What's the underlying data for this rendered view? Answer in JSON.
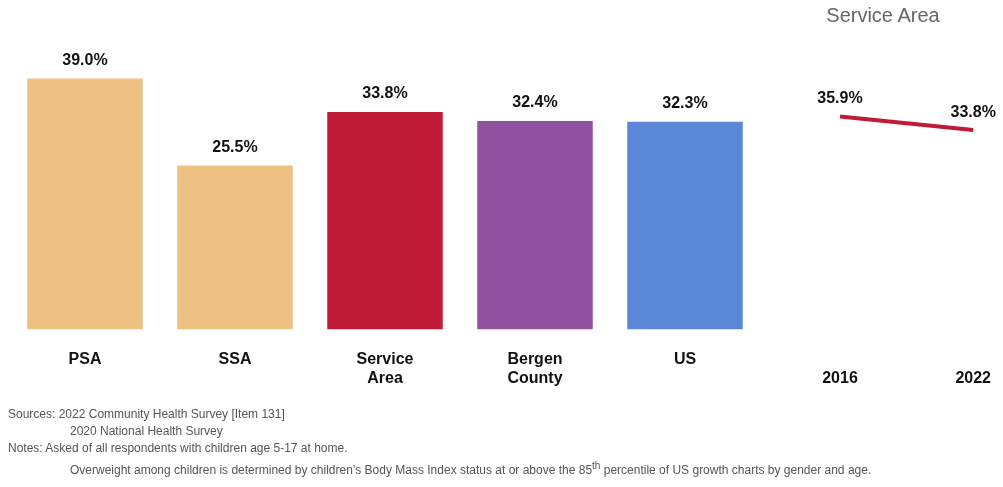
{
  "chart_data": [
    {
      "type": "bar",
      "categories": [
        "PSA",
        "SSA",
        "Service Area",
        "Bergen County",
        "US"
      ],
      "values": [
        39.0,
        25.5,
        33.8,
        32.4,
        32.3
      ],
      "colors": [
        "#edc283",
        "#edc283",
        "#c01c37",
        "#9151a0",
        "#5b87d8"
      ],
      "value_labels": [
        "39.0%",
        "25.5%",
        "33.8%",
        "32.4%",
        "32.3%"
      ],
      "annotations": [
        "Sources: 2022 Community Health Survey [Item 131]",
        "2020 National Health Survey",
        "Notes: Asked of all respondents with children age 5-17 at home.",
        "Overweight among children is determined by children’s Body Mass Index status at or above the 85$^{th}$ percentile of US growth charts by gender and age."
      ]
    },
    {
      "type": "line",
      "title": "Service Area",
      "categories": [
        "2016",
        "2022"
      ],
      "series": [
        {
          "color": "#c01c37",
          "values": [
            35.9,
            33.8
          ],
          "value_labels": [
            "35.9%",
            "33.8%"
          ]
        }
      ]
    }
  ]
}
